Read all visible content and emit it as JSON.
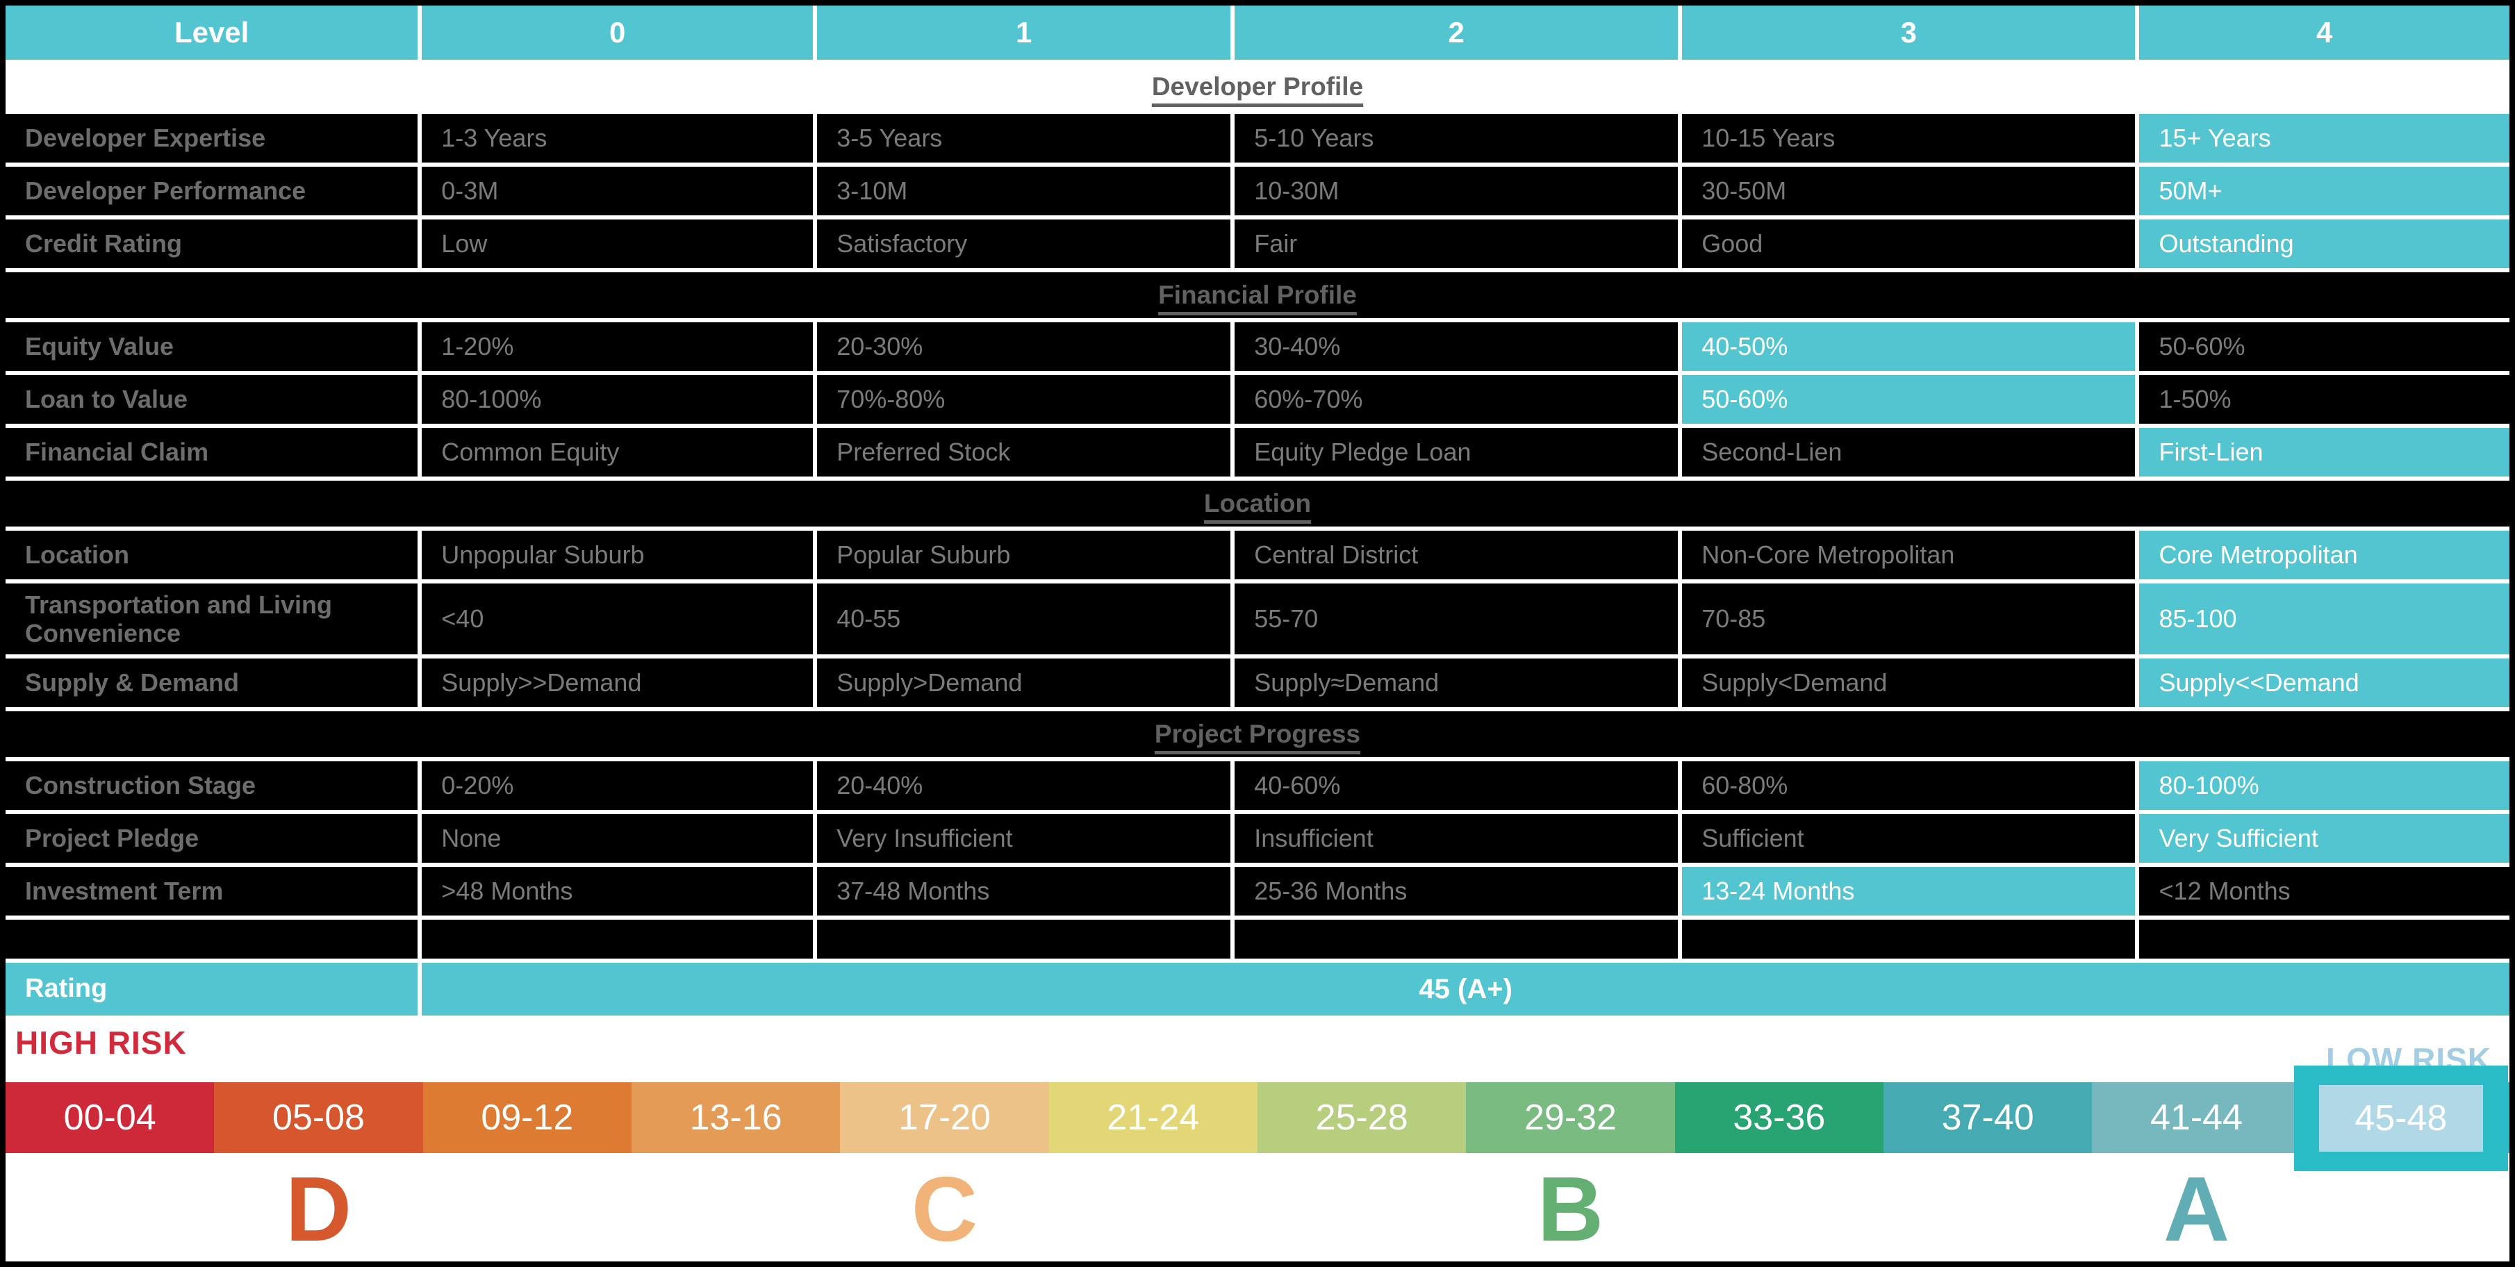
{
  "colors": {
    "accent_teal": "#53c5d1",
    "cell_black": "#000000",
    "label_gray": "#6d6d6d",
    "value_gray": "#7b7b7b",
    "section_title_gray": "#616161",
    "high_risk_red": "#d22a3b",
    "low_risk_blue": "#a3cde2",
    "selected_box_teal": "#2abdc8",
    "selected_inner_blue": "#b0d8e6"
  },
  "chart_data": {
    "type": "table",
    "header": {
      "level_label": "Level",
      "columns": [
        "0",
        "1",
        "2",
        "3",
        "4"
      ]
    },
    "sections": [
      {
        "title": "Developer Profile",
        "style": "light",
        "rows": [
          {
            "label": "Developer Expertise",
            "cells": [
              "1-3 Years",
              "3-5 Years",
              "5-10 Years",
              "10-15 Years",
              "15+ Years"
            ],
            "highlight": 4
          },
          {
            "label": "Developer Performance",
            "cells": [
              "0-3M",
              "3-10M",
              "10-30M",
              "30-50M",
              "50M+"
            ],
            "highlight": 4
          },
          {
            "label": "Credit Rating",
            "cells": [
              "Low",
              "Satisfactory",
              "Fair",
              "Good",
              "Outstanding"
            ],
            "highlight": 4
          }
        ]
      },
      {
        "title": "Financial Profile",
        "style": "dark",
        "rows": [
          {
            "label": "Equity Value",
            "cells": [
              "1-20%",
              "20-30%",
              "30-40%",
              "40-50%",
              "50-60%"
            ],
            "highlight": 3
          },
          {
            "label": "Loan to Value",
            "cells": [
              "80-100%",
              "70%-80%",
              "60%-70%",
              "50-60%",
              "1-50%"
            ],
            "highlight": 3
          },
          {
            "label": "Financial Claim",
            "cells": [
              "Common Equity",
              "Preferred Stock",
              "Equity Pledge Loan",
              "Second-Lien",
              "First-Lien"
            ],
            "highlight": 4
          }
        ]
      },
      {
        "title": "Location",
        "style": "dark",
        "rows": [
          {
            "label": "Location",
            "cells": [
              "Unpopular Suburb",
              "Popular Suburb",
              "Central District",
              "Non-Core Metropolitan",
              "Core Metropolitan"
            ],
            "highlight": 4
          },
          {
            "label": "Transportation and Living Convenience",
            "cells": [
              "<40",
              "40-55",
              "55-70",
              "70-85",
              "85-100"
            ],
            "highlight": 4,
            "tall": true
          },
          {
            "label": "Supply & Demand",
            "cells": [
              "Supply>>Demand",
              "Supply>Demand",
              "Supply≈Demand",
              "Supply<Demand",
              "Supply<<Demand"
            ],
            "highlight": 4
          }
        ]
      },
      {
        "title": "Project Progress",
        "style": "dark",
        "rows": [
          {
            "label": "Construction Stage",
            "cells": [
              "0-20%",
              "20-40%",
              "40-60%",
              "60-80%",
              "80-100%"
            ],
            "highlight": 4
          },
          {
            "label": "Project Pledge",
            "cells": [
              "None",
              "Very Insufficient",
              "Insufficient",
              "Sufficient",
              "Very Sufficient"
            ],
            "highlight": 4
          },
          {
            "label": "Investment Term",
            "cells": [
              ">48 Months",
              "37-48 Months",
              "25-36 Months",
              "13-24 Months",
              "<12 Months"
            ],
            "highlight": 3
          }
        ]
      }
    ],
    "rating": {
      "label": "Rating",
      "value": "45 (A+)"
    },
    "risk_scale": {
      "high_label": "HIGH RISK",
      "low_label": "LOW RISK",
      "selected_range": "45-48",
      "segments": [
        {
          "range": "00-04",
          "color": "#ce2939"
        },
        {
          "range": "05-08",
          "color": "#d6572e"
        },
        {
          "range": "09-12",
          "color": "#dc7b31"
        },
        {
          "range": "13-16",
          "color": "#e39b55"
        },
        {
          "range": "17-20",
          "color": "#ecc289"
        },
        {
          "range": "21-24",
          "color": "#e2d677"
        },
        {
          "range": "25-28",
          "color": "#b6ce7e"
        },
        {
          "range": "29-32",
          "color": "#7abb82"
        },
        {
          "range": "33-36",
          "color": "#27a471"
        },
        {
          "range": "37-40",
          "color": "#46aab3"
        },
        {
          "range": "41-44",
          "color": "#77b8bf"
        },
        {
          "range": "45-48",
          "color": "#2abdc8",
          "selected": true
        }
      ],
      "grades": [
        {
          "letter": "D",
          "color": "#d6592e",
          "position": 2
        },
        {
          "letter": "C",
          "color": "#f1b377",
          "position": 5
        },
        {
          "letter": "B",
          "color": "#63b072",
          "position": 8
        },
        {
          "letter": "A",
          "color": "#60adb5",
          "position": 11
        }
      ]
    }
  }
}
